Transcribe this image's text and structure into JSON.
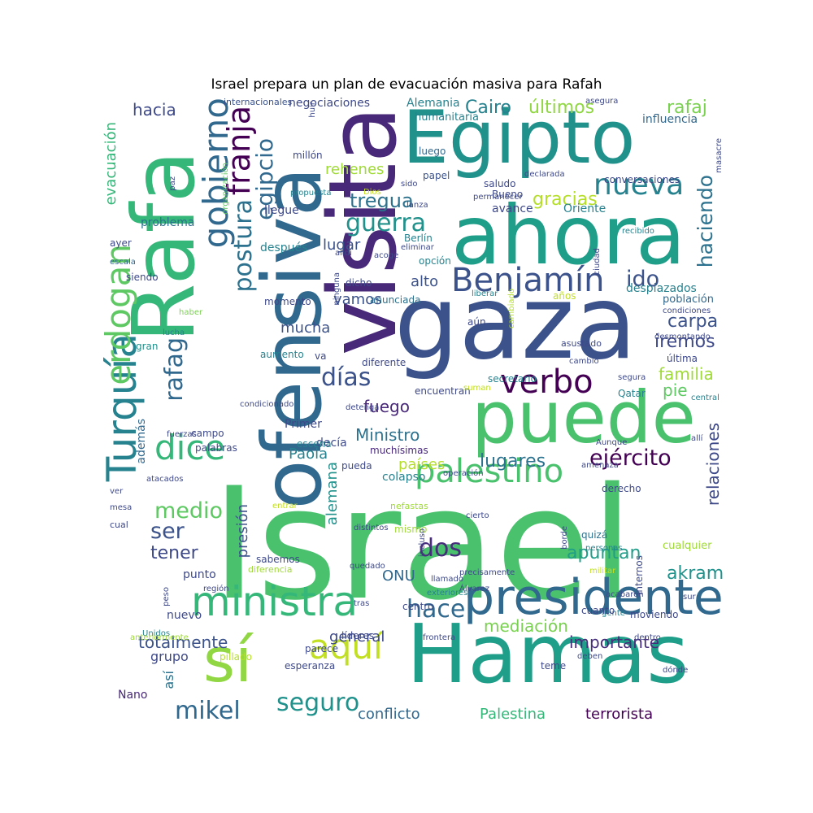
{
  "title": "Israel prepara un plan de evacuación masiva para Rafah",
  "words": [
    {
      "text": "Israel",
      "color": "#4ac16d"
    },
    {
      "text": "gaza",
      "color": "#3b528b"
    },
    {
      "text": "Hamas",
      "color": "#1f9e89"
    },
    {
      "text": "Rafa",
      "color": "#35b779"
    },
    {
      "text": "visita",
      "color": "#482878"
    },
    {
      "text": "ofensiva",
      "color": "#31688e"
    },
    {
      "text": "ahora",
      "color": "#1f9e89"
    },
    {
      "text": "puede",
      "color": "#4ac16d"
    },
    {
      "text": "Egipto",
      "color": "#21918c"
    },
    {
      "text": "presidente",
      "color": "#31688e"
    },
    {
      "text": "sí",
      "color": "#90d743"
    },
    {
      "text": "ministra",
      "color": "#35b779"
    },
    {
      "text": "Turquía",
      "color": "#26828e"
    },
    {
      "text": "erdogan",
      "color": "#5ec962"
    },
    {
      "text": "gobierno",
      "color": "#31688e"
    },
    {
      "text": "franja",
      "color": "#440154"
    },
    {
      "text": "dice",
      "color": "#35b779"
    },
    {
      "text": "palestino",
      "color": "#4ac16d"
    },
    {
      "text": "nueva",
      "color": "#26828e"
    },
    {
      "text": "verbo",
      "color": "#440154"
    },
    {
      "text": "postura",
      "color": "#2c728e"
    },
    {
      "text": "egipcio",
      "color": "#31688e"
    },
    {
      "text": "Benjamín",
      "color": "#3b528b"
    },
    {
      "text": "aquí",
      "color": "#c2df23"
    },
    {
      "text": "rafag",
      "color": "#31688e"
    },
    {
      "text": "guerra",
      "color": "#21918c"
    },
    {
      "text": "seguro",
      "color": "#21918c"
    },
    {
      "text": "mikel",
      "color": "#31688e"
    },
    {
      "text": "ejército",
      "color": "#440154"
    },
    {
      "text": "días",
      "color": "#3b528b"
    },
    {
      "text": "haciendo",
      "color": "#2c728e"
    },
    {
      "text": "hace",
      "color": "#31688e"
    },
    {
      "text": "dos",
      "color": "#472d7b"
    },
    {
      "text": "ido",
      "color": "#3b528b"
    },
    {
      "text": "medio",
      "color": "#5ec962"
    },
    {
      "text": "ser",
      "color": "#3b528b"
    },
    {
      "text": "tregua",
      "color": "#2c728e"
    },
    {
      "text": "gracias",
      "color": "#b5de2b"
    },
    {
      "text": "Cairo",
      "color": "#26828e"
    },
    {
      "text": "últimos",
      "color": "#90d743"
    },
    {
      "text": "rafaj",
      "color": "#7ad151"
    },
    {
      "text": "hacia",
      "color": "#3e4989"
    },
    {
      "text": "rehenes",
      "color": "#a0da39"
    },
    {
      "text": "lugar",
      "color": "#3b528b"
    },
    {
      "text": "alto",
      "color": "#3b528b"
    },
    {
      "text": "vamos",
      "color": "#3b528b"
    },
    {
      "text": "mucha",
      "color": "#3b528b"
    },
    {
      "text": "carpa",
      "color": "#3b528b"
    },
    {
      "text": "iremos",
      "color": "#3e4989"
    },
    {
      "text": "familia",
      "color": "#a0da39"
    },
    {
      "text": "pie",
      "color": "#5ec962"
    },
    {
      "text": "fuego",
      "color": "#482878"
    },
    {
      "text": "Ministro",
      "color": "#2c728e"
    },
    {
      "text": "Paola",
      "color": "#26828e"
    },
    {
      "text": "países",
      "color": "#b5de2b"
    },
    {
      "text": "lugares",
      "color": "#2c728e"
    },
    {
      "text": "relaciones",
      "color": "#3e4989"
    },
    {
      "text": "tener",
      "color": "#3e4989"
    },
    {
      "text": "presión",
      "color": "#3b528b"
    },
    {
      "text": "alemana",
      "color": "#21918c"
    },
    {
      "text": "ONU",
      "color": "#31688e"
    },
    {
      "text": "apuntan",
      "color": "#1f9e89"
    },
    {
      "text": "akram",
      "color": "#21918c"
    },
    {
      "text": "mediación",
      "color": "#7ad151"
    },
    {
      "text": "importante",
      "color": "#472d7b"
    },
    {
      "text": "totalmente",
      "color": "#3b528b"
    },
    {
      "text": "general",
      "color": "#3e4989"
    },
    {
      "text": "grupo",
      "color": "#3e4989"
    },
    {
      "text": "así",
      "color": "#2c728e"
    },
    {
      "text": "Nano",
      "color": "#482878"
    },
    {
      "text": "conflicto",
      "color": "#31688e"
    },
    {
      "text": "Palestina",
      "color": "#35b779"
    },
    {
      "text": "terrorista",
      "color": "#440154"
    },
    {
      "text": "evacuación",
      "color": "#35b779"
    },
    {
      "text": "problema",
      "color": "#2c728e"
    },
    {
      "text": "además",
      "color": "#31688e"
    },
    {
      "text": "internacionales",
      "color": "#3b528b"
    },
    {
      "text": "negociaciones",
      "color": "#3e4989"
    },
    {
      "text": "Alemania",
      "color": "#26828e"
    },
    {
      "text": "humanitaria",
      "color": "#26828e"
    },
    {
      "text": "influencia",
      "color": "#31688e"
    },
    {
      "text": "millón",
      "color": "#3e4989"
    },
    {
      "text": "luego",
      "color": "#31688e"
    },
    {
      "text": "papel",
      "color": "#3b528b"
    },
    {
      "text": "saludo",
      "color": "#3e4989"
    },
    {
      "text": "Bueno",
      "color": "#3e4989"
    },
    {
      "text": "conversaciones",
      "color": "#3e4989"
    },
    {
      "text": "avance",
      "color": "#3e4989"
    },
    {
      "text": "Oriente",
      "color": "#26828e"
    },
    {
      "text": "declarada",
      "color": "#3e4989"
    },
    {
      "text": "masacre",
      "color": "#3e4989"
    },
    {
      "text": "llegue",
      "color": "#3e4989"
    },
    {
      "text": "propuesta",
      "color": "#26828e"
    },
    {
      "text": "Dios",
      "color": "#c2df23"
    },
    {
      "text": "lanza",
      "color": "#3e4989"
    },
    {
      "text": "permanecer",
      "color": "#3e4989"
    },
    {
      "text": "sido",
      "color": "#3e4989"
    },
    {
      "text": "huir",
      "color": "#3e4989"
    },
    {
      "text": "asegura",
      "color": "#3e4989"
    },
    {
      "text": "después",
      "color": "#26828e"
    },
    {
      "text": "siendo",
      "color": "#3e4989"
    },
    {
      "text": "escala",
      "color": "#31688e"
    },
    {
      "text": "ayer",
      "color": "#3e4989"
    },
    {
      "text": "paz",
      "color": "#3e4989"
    },
    {
      "text": "organización",
      "color": "#5ec962"
    },
    {
      "text": "Berlín",
      "color": "#26828e"
    },
    {
      "text": "opción",
      "color": "#26828e"
    },
    {
      "text": "dicho",
      "color": "#3e4989"
    },
    {
      "text": "anunciada",
      "color": "#2c728e"
    },
    {
      "text": "momento",
      "color": "#3e4989"
    },
    {
      "text": "acoge",
      "color": "#3e4989"
    },
    {
      "text": "eliminar",
      "color": "#3e4989"
    },
    {
      "text": "alidi",
      "color": "#3e4989"
    },
    {
      "text": "ninguna",
      "color": "#3e4989"
    },
    {
      "text": "liberar",
      "color": "#26828e"
    },
    {
      "text": "recibido",
      "color": "#26828e"
    },
    {
      "text": "ciudad",
      "color": "#3e4989"
    },
    {
      "text": "desplazados",
      "color": "#26828e"
    },
    {
      "text": "población",
      "color": "#31688e"
    },
    {
      "text": "condiciones",
      "color": "#3e4989"
    },
    {
      "text": "años",
      "color": "#c2df23"
    },
    {
      "text": "cambiado",
      "color": "#b5de2b"
    },
    {
      "text": "aún",
      "color": "#3e4989"
    },
    {
      "text": "asustado",
      "color": "#3e4989"
    },
    {
      "text": "desmontando",
      "color": "#3e4989"
    },
    {
      "text": "última",
      "color": "#3e4989"
    },
    {
      "text": "haber",
      "color": "#7ad151"
    },
    {
      "text": "lucha",
      "color": "#26828e"
    },
    {
      "text": "gran",
      "color": "#21918c"
    },
    {
      "text": "aumento",
      "color": "#26828e"
    },
    {
      "text": "va",
      "color": "#3e4989"
    },
    {
      "text": "diferente",
      "color": "#3e4989"
    },
    {
      "text": "secretario",
      "color": "#26828e"
    },
    {
      "text": "cambio",
      "color": "#3e4989"
    },
    {
      "text": "segura",
      "color": "#3e4989"
    },
    {
      "text": "encuentran",
      "color": "#3e4989"
    },
    {
      "text": "suman",
      "color": "#c2df23"
    },
    {
      "text": "Qatar",
      "color": "#26828e"
    },
    {
      "text": "central",
      "color": "#26828e"
    },
    {
      "text": "condicionado",
      "color": "#3e4989"
    },
    {
      "text": "detenga",
      "color": "#3e4989"
    },
    {
      "text": "Primer",
      "color": "#3e4989"
    },
    {
      "text": "decía",
      "color": "#3e4989"
    },
    {
      "text": "campo",
      "color": "#3e4989"
    },
    {
      "text": "fuerzas",
      "color": "#3e4989"
    },
    {
      "text": "escena",
      "color": "#26828e"
    },
    {
      "text": "palabras",
      "color": "#3e4989"
    },
    {
      "text": "muchísimas",
      "color": "#482878"
    },
    {
      "text": "Aunque",
      "color": "#3e4989"
    },
    {
      "text": "allí",
      "color": "#3e4989"
    },
    {
      "text": "pueda",
      "color": "#3e4989"
    },
    {
      "text": "operación",
      "color": "#3e4989"
    },
    {
      "text": "amenaza",
      "color": "#3e4989"
    },
    {
      "text": "atacados",
      "color": "#3e4989"
    },
    {
      "text": "colapso",
      "color": "#26828e"
    },
    {
      "text": "derecho",
      "color": "#3e4989"
    },
    {
      "text": "ver",
      "color": "#3e4989"
    },
    {
      "text": "mesa",
      "color": "#3e4989"
    },
    {
      "text": "entrar",
      "color": "#c2df23"
    },
    {
      "text": "nefastas",
      "color": "#a0da39"
    },
    {
      "text": "cierto",
      "color": "#3e4989"
    },
    {
      "text": "mismo",
      "color": "#a0da39"
    },
    {
      "text": "distintos",
      "color": "#3e4989"
    },
    {
      "text": "quizá",
      "color": "#2c728e"
    },
    {
      "text": "cual",
      "color": "#3e4989"
    },
    {
      "text": "borde",
      "color": "#3e4989"
    },
    {
      "text": "personas",
      "color": "#26828e"
    },
    {
      "text": "sabemos",
      "color": "#3e4989"
    },
    {
      "text": "quedado",
      "color": "#3e4989"
    },
    {
      "text": "precisamente",
      "color": "#3e4989"
    },
    {
      "text": "llamado",
      "color": "#3e4989"
    },
    {
      "text": "cualquier",
      "color": "#a0da39"
    },
    {
      "text": "punto",
      "color": "#3e4989"
    },
    {
      "text": "región",
      "color": "#3e4989"
    },
    {
      "text": "diferencia",
      "color": "#a0da39"
    },
    {
      "text": "internos",
      "color": "#3e4989"
    },
    {
      "text": "militar",
      "color": "#c2df23"
    },
    {
      "text": "acabaron",
      "color": "#3e4989"
    },
    {
      "text": "peso",
      "color": "#3e4989"
    },
    {
      "text": "gente",
      "color": "#26828e"
    },
    {
      "text": "tras",
      "color": "#3e4989"
    },
    {
      "text": "incluso",
      "color": "#3e4989"
    },
    {
      "text": "Álvarez",
      "color": "#3e4989"
    },
    {
      "text": "centro",
      "color": "#3e4989"
    },
    {
      "text": "líderes",
      "color": "#3e4989"
    },
    {
      "text": "exteriores",
      "color": "#26828e"
    },
    {
      "text": "cuanto",
      "color": "#3e4989"
    },
    {
      "text": "sur",
      "color": "#3e4989"
    },
    {
      "text": "nuevo",
      "color": "#3e4989"
    },
    {
      "text": "moviendo",
      "color": "#3e4989"
    },
    {
      "text": "Unidos",
      "color": "#26828e"
    },
    {
      "text": "anteriormente",
      "color": "#a0da39"
    },
    {
      "text": "parece",
      "color": "#3e4989"
    },
    {
      "text": "deben",
      "color": "#3e4989"
    },
    {
      "text": "dónde",
      "color": "#3e4989"
    },
    {
      "text": "pillado",
      "color": "#b5de2b"
    },
    {
      "text": "esperanza",
      "color": "#3e4989"
    },
    {
      "text": "frontera",
      "color": "#3e4989"
    },
    {
      "text": "teme",
      "color": "#3e4989"
    },
    {
      "text": "dentro",
      "color": "#3e4989"
    }
  ]
}
